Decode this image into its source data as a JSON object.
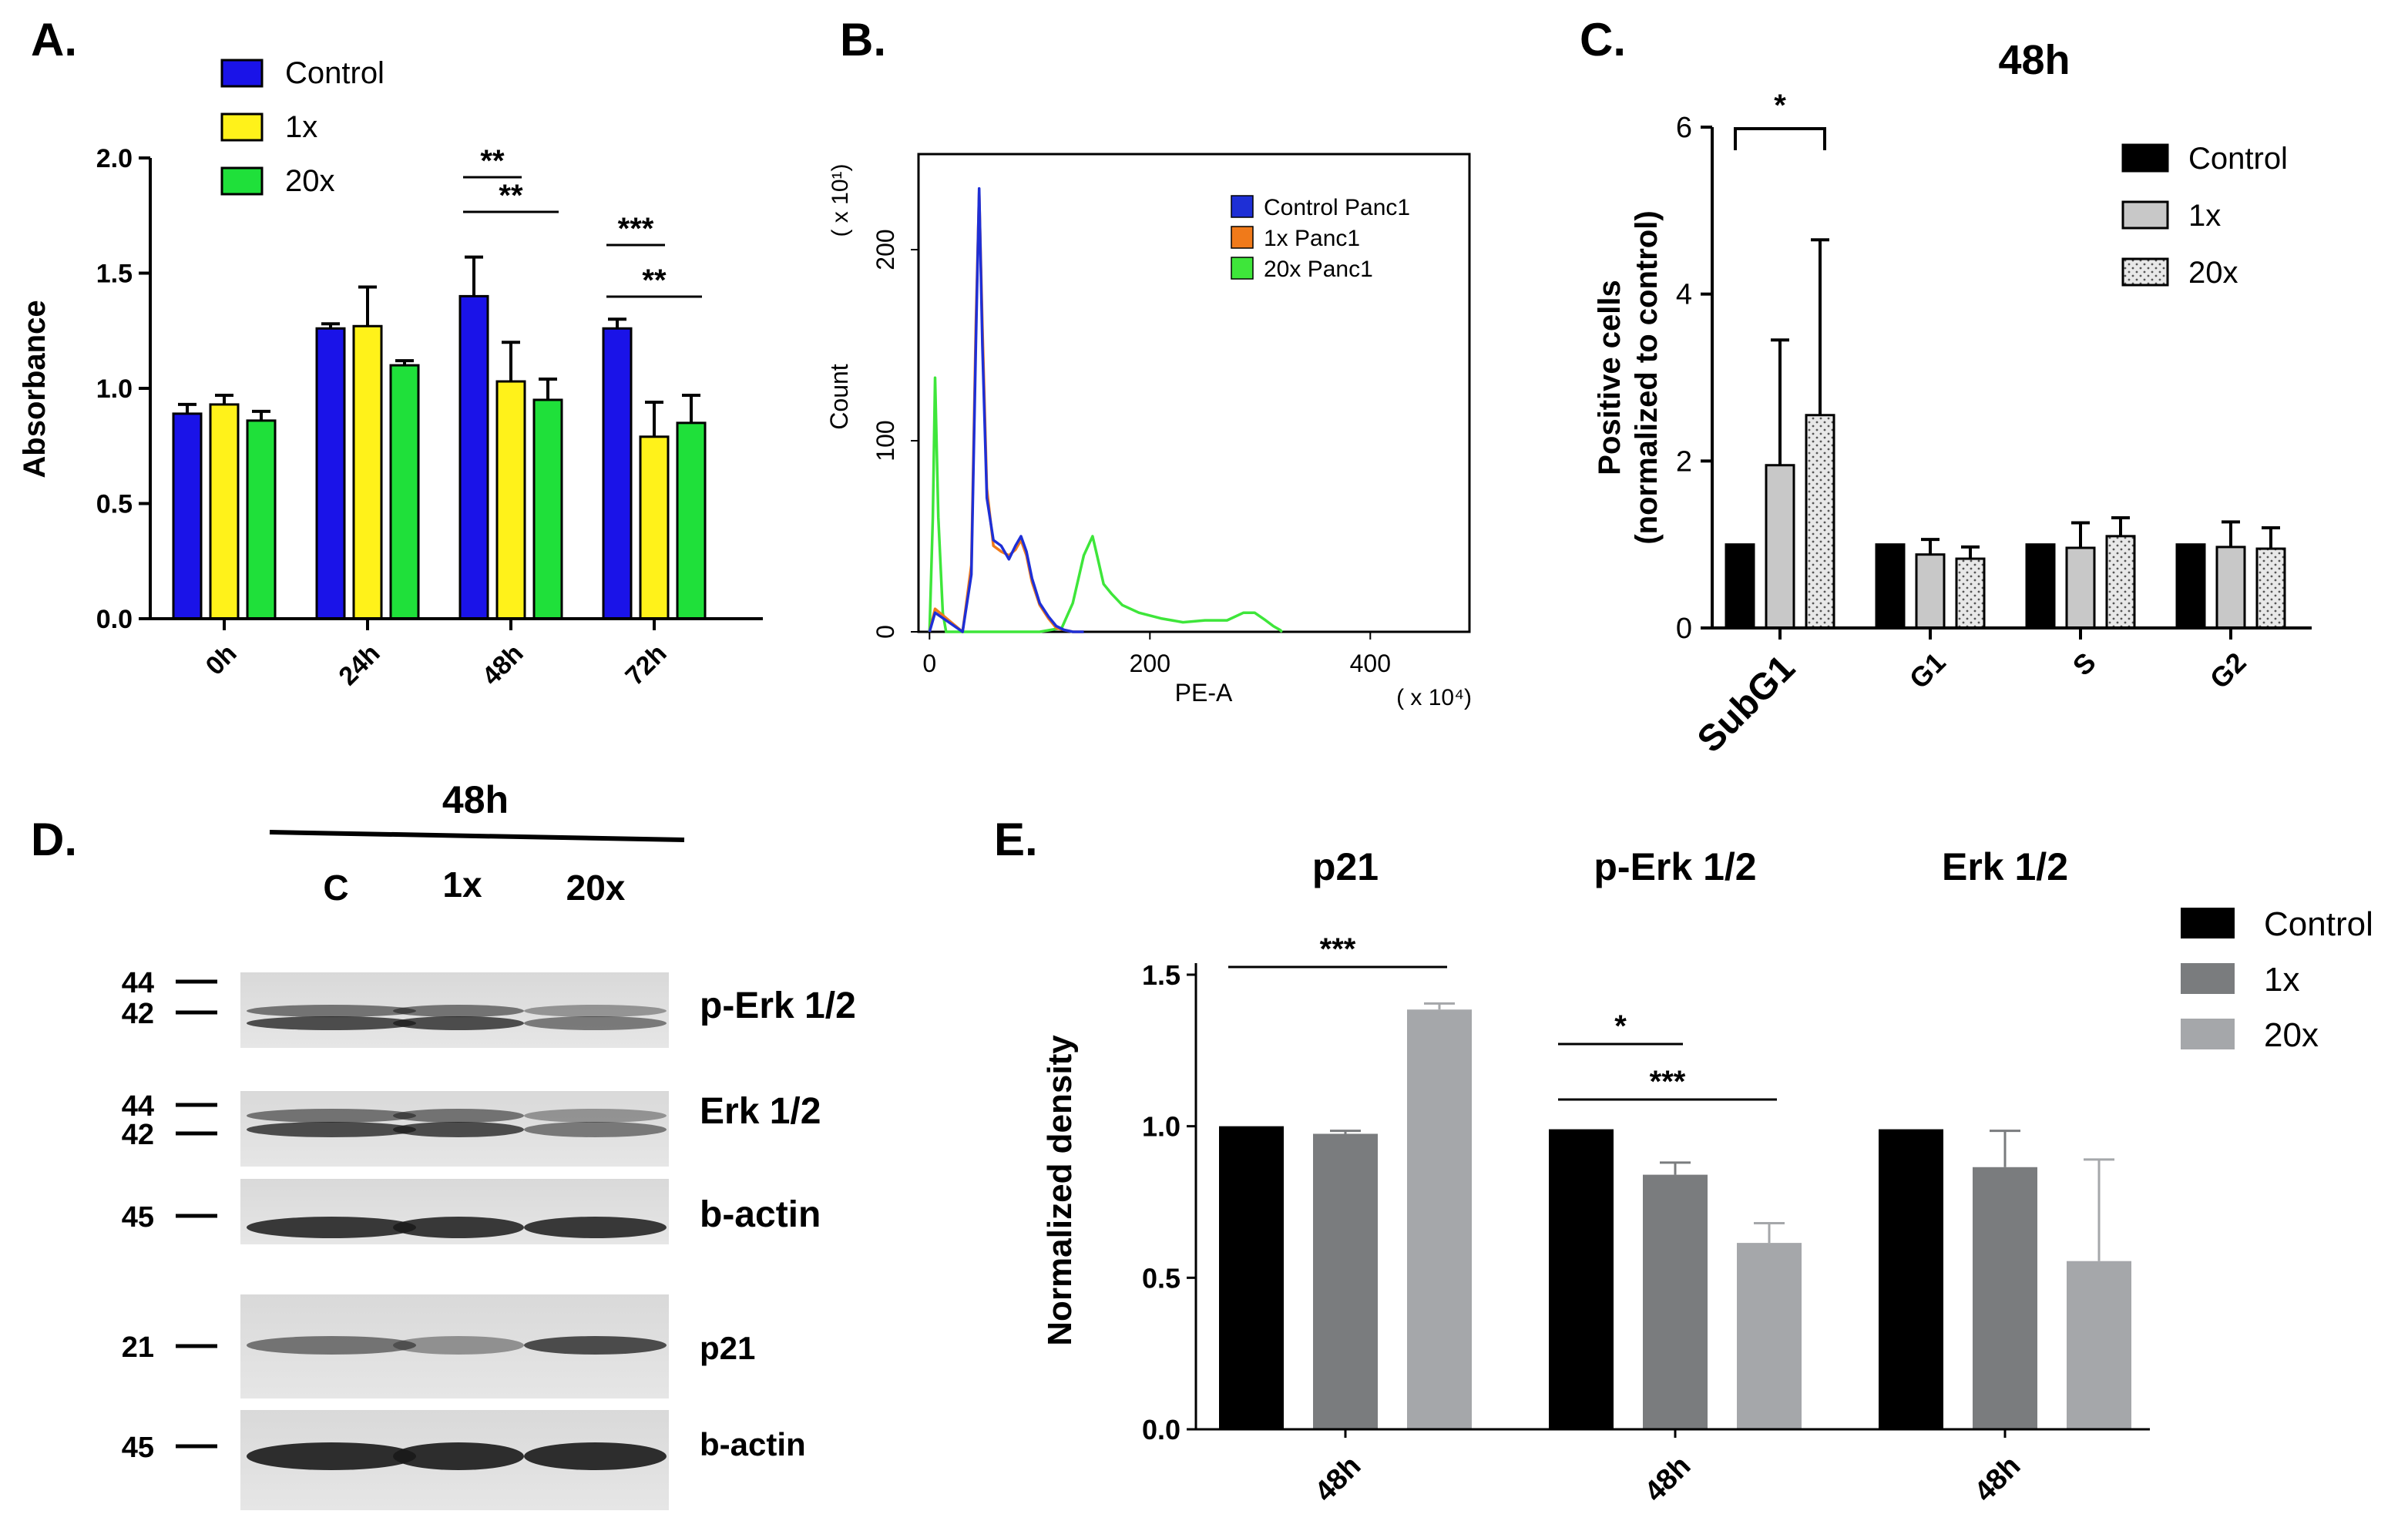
{
  "colors": {
    "control_a": "#1a13e8",
    "x1_a": "#fff21a",
    "x20_a": "#1fe03a",
    "control_b": "#1e2fd6",
    "x1_b": "#f07a1a",
    "x20_b": "#3ee63a",
    "control_c": "#000000",
    "x1_c": "#c8c8c8",
    "x20_c": "#e8e8e8",
    "control_e": "#000000",
    "x1_e": "#7a7c7e",
    "x20_e": "#a5a7aa"
  },
  "panels": {
    "a": "A.",
    "b": "B.",
    "c": "C.",
    "d": "D.",
    "e": "E."
  },
  "chart_data": [
    {
      "id": "A",
      "type": "bar",
      "title": "",
      "xlabel": "",
      "ylabel": "Absorbance",
      "ylim": [
        0,
        2.0
      ],
      "yticks": [
        "0.0",
        "0.5",
        "1.0",
        "1.5",
        "2.0"
      ],
      "categories": [
        "0h",
        "24h",
        "48h",
        "72h"
      ],
      "series": [
        {
          "name": "Control",
          "values": [
            0.89,
            1.26,
            1.4,
            1.26
          ],
          "errors": [
            0.04,
            0.02,
            0.17,
            0.04
          ]
        },
        {
          "name": "1x",
          "values": [
            0.93,
            1.27,
            1.03,
            0.79
          ],
          "errors": [
            0.04,
            0.17,
            0.17,
            0.15
          ]
        },
        {
          "name": "20x",
          "values": [
            0.86,
            1.1,
            0.95,
            0.85
          ],
          "errors": [
            0.04,
            0.02,
            0.09,
            0.12
          ]
        }
      ],
      "legend": [
        "Control",
        "1x",
        "20x"
      ],
      "annotations": [
        {
          "group": "48h",
          "from": "Control",
          "to": "1x",
          "label": "**"
        },
        {
          "group": "48h",
          "from": "Control",
          "to": "20x",
          "label": "**"
        },
        {
          "group": "72h",
          "from": "Control",
          "to": "1x",
          "label": "***"
        },
        {
          "group": "72h",
          "from": "Control",
          "to": "20x",
          "label": "**"
        }
      ]
    },
    {
      "id": "B",
      "type": "line",
      "xlabel": "PE-A",
      "ylabel": "Count",
      "x_multiplier": "( x 10⁴)",
      "y_multiplier": "( x 10¹)",
      "xlim": [
        -10,
        490
      ],
      "ylim": [
        0,
        250
      ],
      "xticks": [
        "0",
        "200",
        "400"
      ],
      "yticks": [
        "0",
        "100",
        "200"
      ],
      "legend": [
        "Control Panc1",
        "1x Panc1",
        "20x Panc1"
      ],
      "series": [
        {
          "name": "Control Panc1",
          "x": [
            0,
            5,
            30,
            38,
            42,
            45,
            48,
            52,
            58,
            65,
            72,
            78,
            83,
            88,
            93,
            100,
            108,
            115,
            122,
            130,
            140
          ],
          "y": [
            0,
            10,
            0,
            30,
            150,
            232,
            150,
            70,
            48,
            45,
            38,
            45,
            50,
            42,
            28,
            15,
            8,
            3,
            1,
            0,
            0
          ]
        },
        {
          "name": "1x Panc1",
          "x": [
            0,
            5,
            30,
            38,
            42,
            45,
            48,
            52,
            58,
            65,
            72,
            78,
            83,
            88,
            93,
            100,
            108,
            115,
            122,
            130,
            140
          ],
          "y": [
            0,
            12,
            0,
            35,
            160,
            230,
            160,
            75,
            45,
            42,
            40,
            43,
            48,
            40,
            26,
            14,
            7,
            2,
            1,
            0,
            0
          ]
        },
        {
          "name": "20x Panc1",
          "x": [
            0,
            3,
            5,
            8,
            12,
            15,
            20,
            40,
            100,
            120,
            130,
            140,
            148,
            152,
            158,
            165,
            175,
            190,
            210,
            230,
            250,
            270,
            285,
            295,
            305,
            312,
            318,
            320
          ],
          "y": [
            0,
            60,
            133,
            60,
            10,
            0,
            0,
            0,
            0,
            2,
            15,
            40,
            50,
            40,
            25,
            20,
            14,
            10,
            7,
            5,
            6,
            6,
            10,
            10,
            6,
            3,
            1,
            0
          ]
        }
      ]
    },
    {
      "id": "C",
      "type": "bar",
      "title": "48h",
      "xlabel": "",
      "ylabel": "Positive cells (normalized to control)",
      "ylabel_line1": "Positive cells",
      "ylabel_line2": "(normalized to control)",
      "ylim": [
        0,
        6
      ],
      "yticks": [
        "0",
        "2",
        "4",
        "6"
      ],
      "categories": [
        "SubG1",
        "G1",
        "S",
        "G2"
      ],
      "series": [
        {
          "name": "Control",
          "values": [
            1.0,
            1.0,
            1.0,
            1.0
          ],
          "errors": [
            0,
            0,
            0,
            0
          ]
        },
        {
          "name": "1x",
          "values": [
            1.95,
            0.88,
            0.96,
            0.97
          ],
          "errors": [
            1.5,
            0.18,
            0.3,
            0.3
          ]
        },
        {
          "name": "20x",
          "values": [
            2.55,
            0.83,
            1.1,
            0.95
          ],
          "errors": [
            2.1,
            0.14,
            0.22,
            0.25
          ]
        }
      ],
      "legend": [
        "Control",
        "1x",
        "20x"
      ],
      "annotations": [
        {
          "group": "SubG1",
          "from": "Control",
          "to": "20x",
          "label": "*"
        }
      ]
    },
    {
      "id": "E",
      "type": "bar",
      "title": "",
      "xlabel": "",
      "ylabel": "Normalized density",
      "ylim": [
        0,
        1.5
      ],
      "yticks": [
        "0.0",
        "0.5",
        "1.0",
        "1.5"
      ],
      "group_titles": [
        "p21",
        "p-Erk 1/2",
        "Erk 1/2"
      ],
      "categories": [
        "48h",
        "48h",
        "48h"
      ],
      "series": [
        {
          "name": "Control",
          "values": [
            1.0,
            0.99,
            0.99
          ],
          "errors": [
            0,
            0,
            0
          ]
        },
        {
          "name": "1x",
          "values": [
            0.975,
            0.84,
            0.865
          ],
          "errors": [
            0.01,
            0.04,
            0.12
          ]
        },
        {
          "name": "20x",
          "values": [
            1.385,
            0.615,
            0.555
          ],
          "errors": [
            0.02,
            0.065,
            0.335
          ]
        }
      ],
      "legend": [
        "Control",
        "1x",
        "20x"
      ],
      "annotations": [
        {
          "group": "p21",
          "from": "Control",
          "to": "20x",
          "label": "***"
        },
        {
          "group": "p-Erk 1/2",
          "from": "Control",
          "to": "1x",
          "label": "*"
        },
        {
          "group": "p-Erk 1/2",
          "from": "Control",
          "to": "20x",
          "label": "***"
        }
      ]
    }
  ],
  "blot": {
    "title": "48h",
    "lanes": [
      "C",
      "1x",
      "20x"
    ],
    "rows": [
      {
        "label": "p-Erk 1/2",
        "markers": [
          "44",
          "42"
        ]
      },
      {
        "label": "Erk 1/2",
        "markers": [
          "44",
          "42"
        ]
      },
      {
        "label": "b-actin",
        "markers": [
          "45"
        ]
      },
      {
        "label": "p21",
        "markers": [
          "21"
        ]
      },
      {
        "label": "b-actin",
        "markers": [
          "45"
        ]
      }
    ]
  }
}
